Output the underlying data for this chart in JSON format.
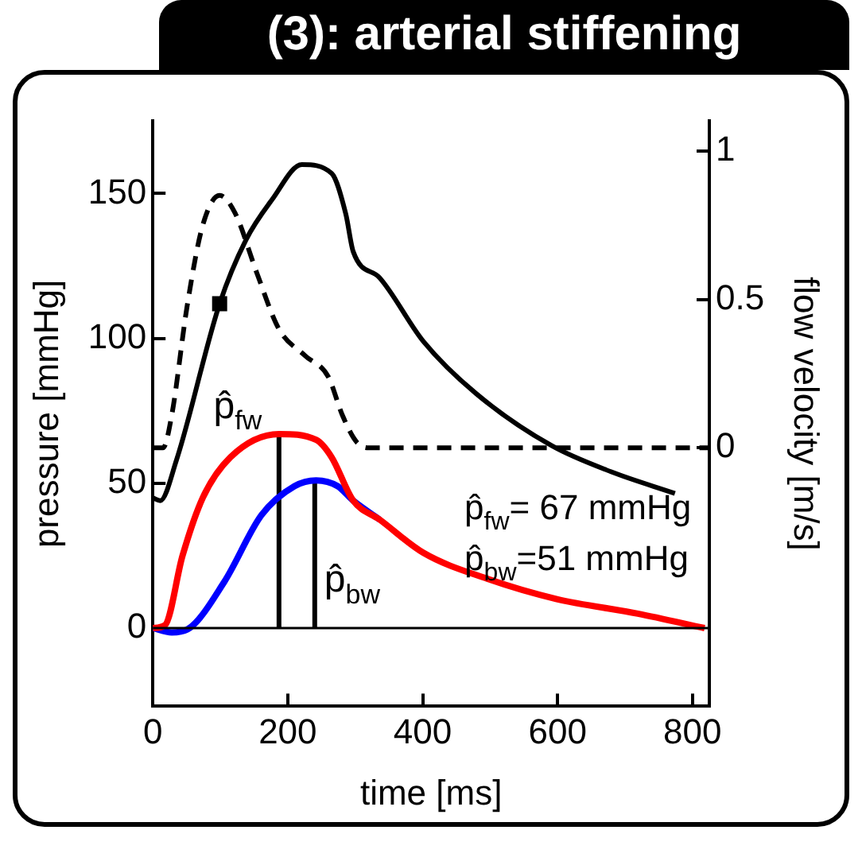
{
  "chart_data": {
    "type": "line",
    "title": "(3): arterial stiffening",
    "xlabel": "time [ms]",
    "ylabel": "pressure [mmHg]",
    "y2label": "flow velocity [m/s]",
    "xlim": [
      0,
      825
    ],
    "xticks": [
      0,
      200,
      400,
      600,
      800
    ],
    "ylim": [
      -27,
      175
    ],
    "yticks": [
      0,
      50,
      100,
      150
    ],
    "y2lim": [
      -0.87,
      1.1
    ],
    "y2ticks": [
      0,
      0.5,
      1
    ],
    "grid": false,
    "legend": false,
    "series": [
      {
        "type": "line",
        "color": "#000000",
        "axis": "y2",
        "line_style": "dashed",
        "x": [
          0,
          15,
          28,
          51,
          74,
          99,
          122,
          154,
          187,
          226,
          260,
          281,
          302,
          320,
          823
        ],
        "values": [
          0,
          0,
          0.11,
          0.48,
          0.75,
          0.85,
          0.79,
          0.59,
          0.4,
          0.31,
          0.24,
          0.11,
          0.02,
          0,
          0
        ]
      },
      {
        "type": "line",
        "color": "#000000",
        "x": [
          0,
          11,
          35,
          99,
          138,
          177,
          221,
          265,
          286,
          297,
          336,
          401,
          479,
          591,
          679,
          774
        ],
        "values": [
          45,
          44,
          58,
          112,
          134,
          148,
          160,
          157,
          143,
          130,
          121,
          99,
          81,
          63,
          54,
          46.5
        ]
      },
      {
        "type": "scatter",
        "color": "#000000",
        "marker": "square",
        "x": [
          99
        ],
        "values": [
          112
        ]
      },
      {
        "type": "line",
        "color": "#ff0000",
        "x": [
          0,
          18,
          44,
          74,
          115,
          187,
          242,
          265,
          297,
          336,
          401,
          496,
          599,
          719,
          818
        ],
        "values": [
          0,
          1,
          25,
          45,
          59,
          67,
          65,
          59,
          44,
          37.5,
          26,
          17,
          10,
          5,
          0
        ]
      },
      {
        "type": "line",
        "color": "#0000ff",
        "x": [
          0,
          28,
          51,
          106,
          161,
          210,
          242,
          274,
          297,
          336
        ],
        "values": [
          0,
          -1.5,
          -0.5,
          16,
          39,
          49,
          51,
          49,
          44,
          37.5
        ]
      },
      {
        "type": "line",
        "color": "#000000",
        "x": [
          187,
          187
        ],
        "values": [
          0,
          67
        ]
      },
      {
        "type": "line",
        "color": "#000000",
        "x": [
          240,
          240
        ],
        "values": [
          0,
          51
        ]
      }
    ],
    "ref_lines": [
      {
        "axis": "y",
        "value": 0,
        "color": "#000000"
      }
    ],
    "annotations": [
      {
        "text": "p̂$_{fw}$",
        "x": 187,
        "y": 67
      },
      {
        "text": "p̂$_{bw}$",
        "x": 240,
        "y": 51
      },
      "p̂$_{fw}$= 67 mmHg",
      "p̂$_{bw}$=51 mmHg"
    ]
  }
}
